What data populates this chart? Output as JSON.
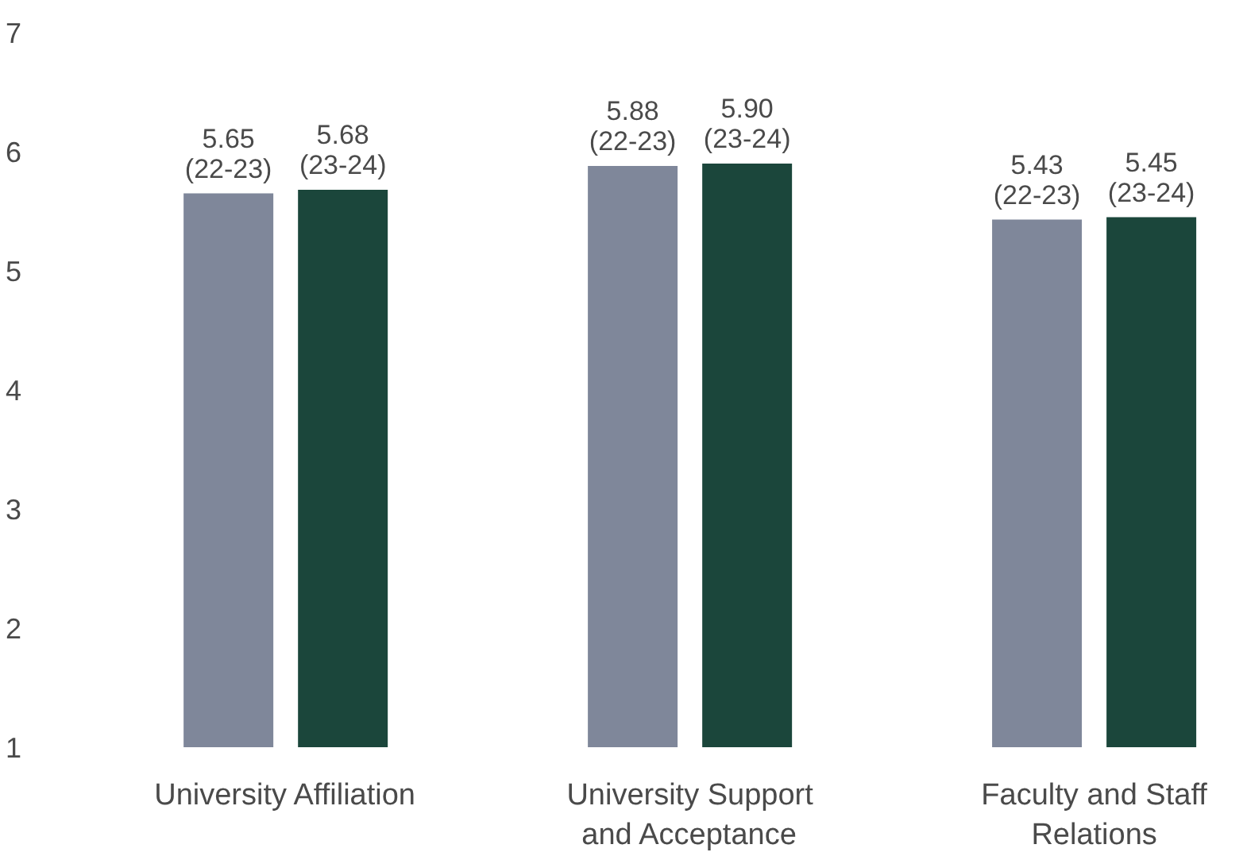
{
  "chart_data": {
    "type": "bar",
    "categories": [
      "University Affiliation",
      "University Support and Acceptance",
      "Faculty and Staff Relations"
    ],
    "series": [
      {
        "name": "(22-23)",
        "color": "#7f879a",
        "values": [
          5.65,
          5.88,
          5.43
        ],
        "value_labels": [
          "5.65",
          "5.88",
          "5.43"
        ]
      },
      {
        "name": "(23-24)",
        "color": "#1b463b",
        "values": [
          5.68,
          5.9,
          5.45
        ],
        "value_labels": [
          "5.68",
          "5.90",
          "5.45"
        ]
      }
    ],
    "ylim": [
      1,
      7
    ],
    "yticks": [
      1,
      2,
      3,
      4,
      5,
      6,
      7
    ]
  }
}
